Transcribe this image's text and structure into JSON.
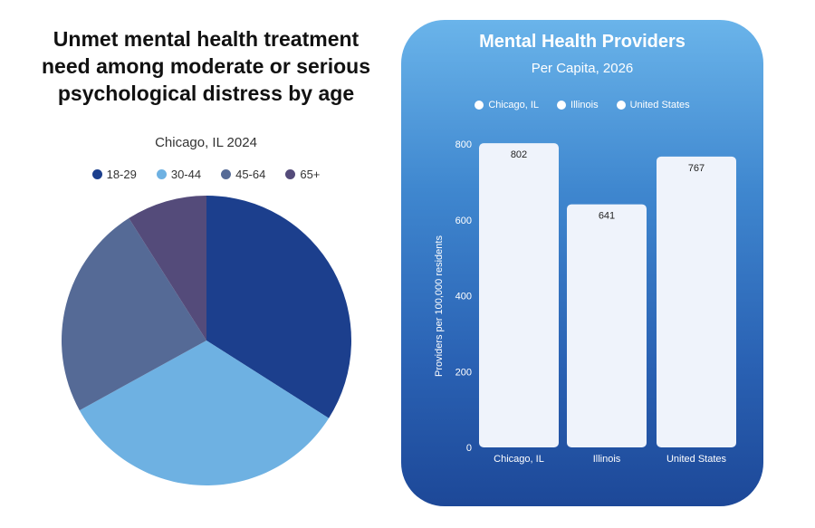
{
  "chart_data": [
    {
      "type": "pie",
      "title": "Unmet mental health treatment need among moderate or serious psychological distress by age",
      "subtitle": "Chicago, IL 2024",
      "legend_position": "top",
      "categories": [
        "18-29",
        "30-44",
        "45-64",
        "65+"
      ],
      "values": [
        34,
        33,
        24,
        9
      ],
      "colors": [
        "#1c3f8d",
        "#6eb1e2",
        "#556a96",
        "#544b7a"
      ]
    },
    {
      "type": "bar",
      "title": "Mental Health Providers",
      "subtitle": "Per Capita, 2026",
      "legend_position": "top",
      "legend": [
        "Chicago, IL",
        "Illinois",
        "United States"
      ],
      "categories": [
        "Chicago, IL",
        "Illinois",
        "United States"
      ],
      "values": [
        802,
        641,
        767
      ],
      "ylabel": "Providers per 100,000 residents",
      "ylim": [
        0,
        800
      ],
      "yticks": [
        0,
        200,
        400,
        600,
        800
      ],
      "grid": false,
      "bar_color": "#eff3fb"
    }
  ]
}
